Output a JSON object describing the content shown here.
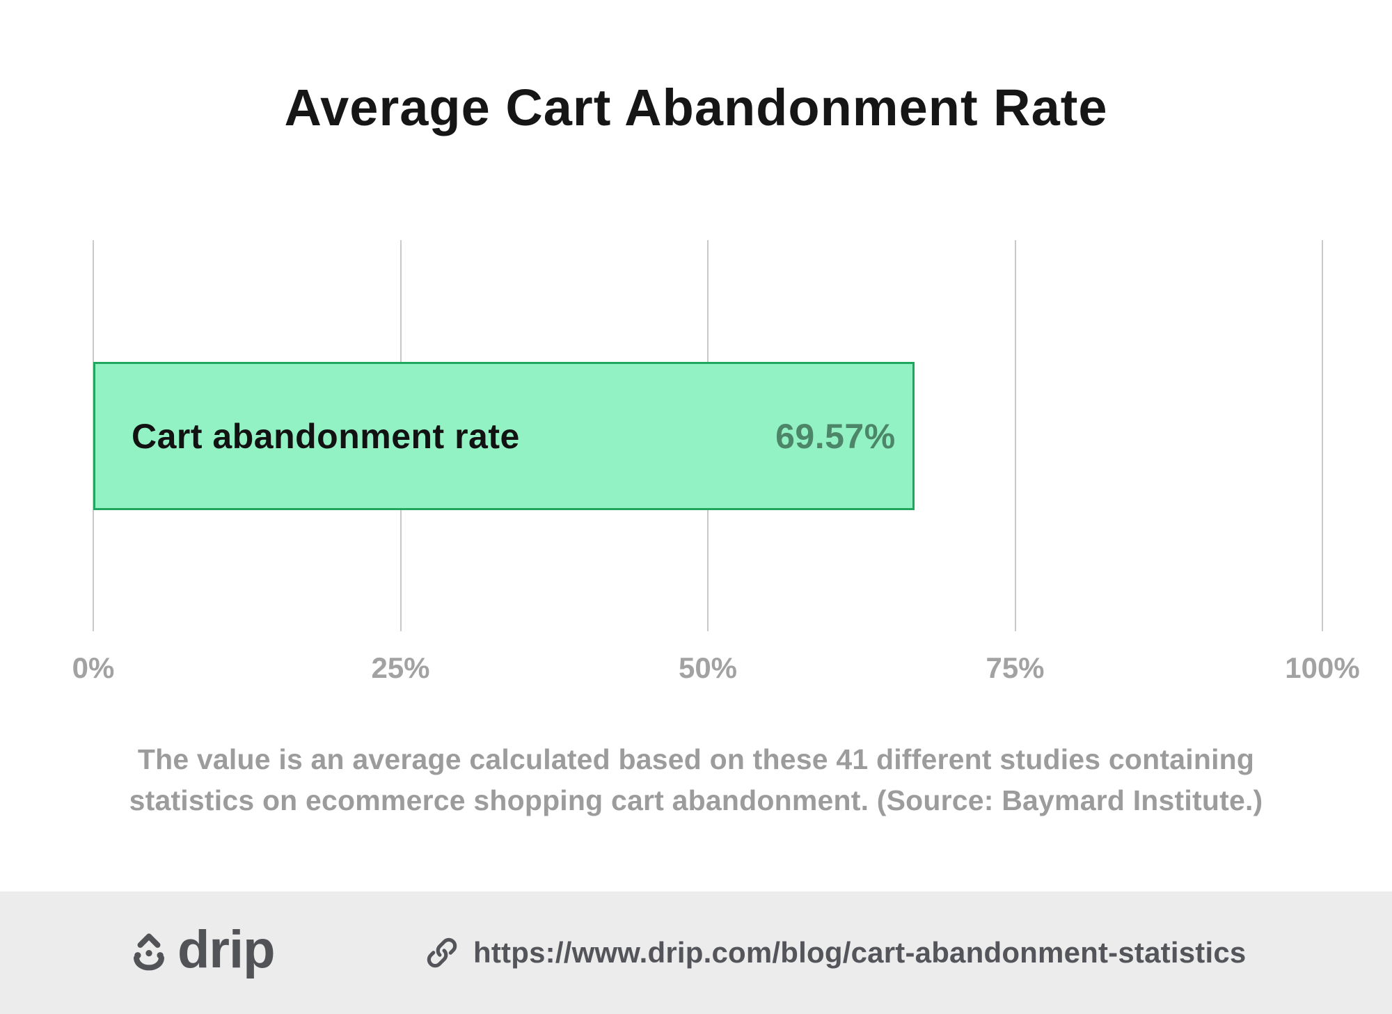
{
  "title": "Average Cart Abandonment Rate",
  "chart_data": {
    "type": "bar",
    "orientation": "horizontal",
    "title": "Average Cart Abandonment Rate",
    "categories": [
      "Cart abandonment rate"
    ],
    "values": [
      69.57
    ],
    "value_labels": [
      "69.57%"
    ],
    "unit": "%",
    "xlim": [
      0,
      100
    ],
    "x_ticks": [
      "0%",
      "25%",
      "50%",
      "75%",
      "100%"
    ],
    "grid": "vertical-gridlines-only",
    "legend": "none",
    "bar_rendered_width_pct": 66.8,
    "bar_fill": "#92f2c3",
    "bar_border": "#1fa75f",
    "source_note": "The value is an average calculated based on these 41 different studies containing statistics on ecommerce shopping cart abandonment. (Source: Baymard Institute.)"
  },
  "caption": {
    "line1": "The value is an average calculated based on these 41 different studies containing",
    "line2": "statistics on ecommerce shopping cart abandonment. (Source: Baymard Institute.)"
  },
  "footer": {
    "logo_text": "drip",
    "logo_icon": "drip-droplet-icon",
    "link_icon": "link-icon",
    "url": "https://www.drip.com/blog/cart-abandonment-statistics"
  },
  "colors": {
    "background": "#ffffff",
    "title_text": "#161616",
    "bar_fill": "#92f2c3",
    "bar_border": "#1fa75f",
    "bar_label_text": "#121212",
    "bar_value_text": "#4d8569",
    "gridline": "#c9c9c9",
    "tick_text": "#a2a2a2",
    "caption_text": "#9c9c9c",
    "footer_background": "#ececec",
    "footer_text": "#54555a"
  }
}
